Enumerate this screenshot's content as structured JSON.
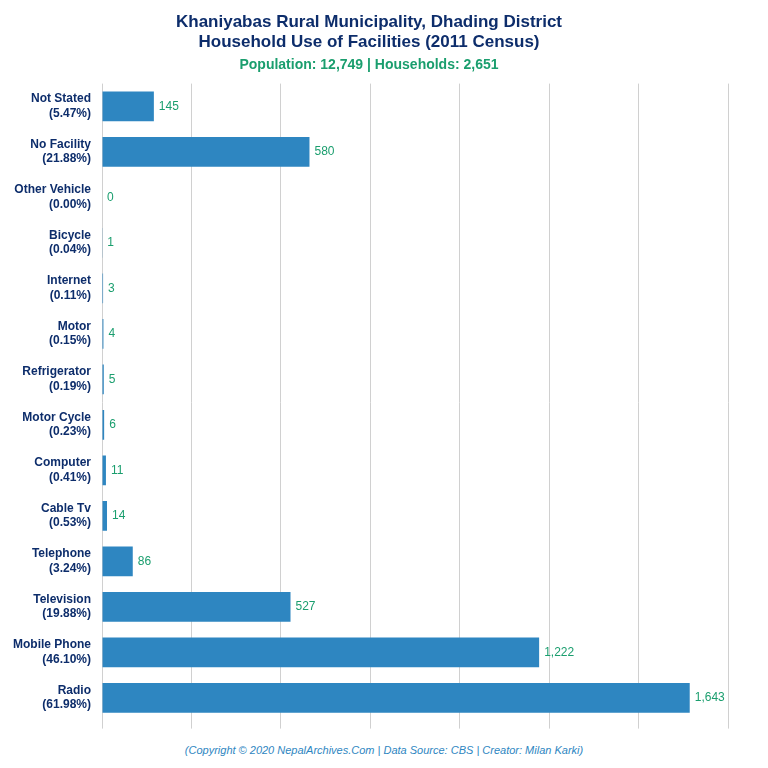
{
  "chart_data": {
    "type": "bar",
    "orientation": "horizontal",
    "title": "Khaniyabas Rural Municipality, Dhading District\nHousehold Use of Facilities (2011 Census)",
    "subtitle": "Population: 12,749 | Households: 2,651",
    "annotations": [
      "(Copyright © 2020 NepalArchives.Com | Data Source: CBS | Creator: Milan Karki)"
    ],
    "categories": [
      "Radio\n(61.98%)",
      "Mobile Phone\n(46.10%)",
      "Television\n(19.88%)",
      "Telephone\n(3.24%)",
      "Cable Tv\n(0.53%)",
      "Computer\n(0.41%)",
      "Motor Cycle\n(0.23%)",
      "Refrigerator\n(0.19%)",
      "Motor\n(0.15%)",
      "Internet\n(0.11%)",
      "Bicycle\n(0.04%)",
      "Other Vehicle\n(0.00%)",
      "No Facility\n(21.88%)",
      "Not Stated\n(5.47%)"
    ],
    "values": [
      1643,
      1222,
      527,
      86,
      14,
      11,
      6,
      5,
      4,
      3,
      1,
      0,
      580,
      145
    ],
    "value_labels": [
      "1,643",
      "1,222",
      "527",
      "86",
      "14",
      "11",
      "6",
      "5",
      "4",
      "3",
      "1",
      "0",
      "580",
      "145"
    ],
    "data_labels": true,
    "color": "#2e86c1",
    "xlim": [
      0,
      1750
    ],
    "xticks": [
      0,
      250,
      500,
      750,
      1000,
      1250,
      1500,
      1750
    ],
    "grid": true,
    "tick_labels": "y"
  }
}
